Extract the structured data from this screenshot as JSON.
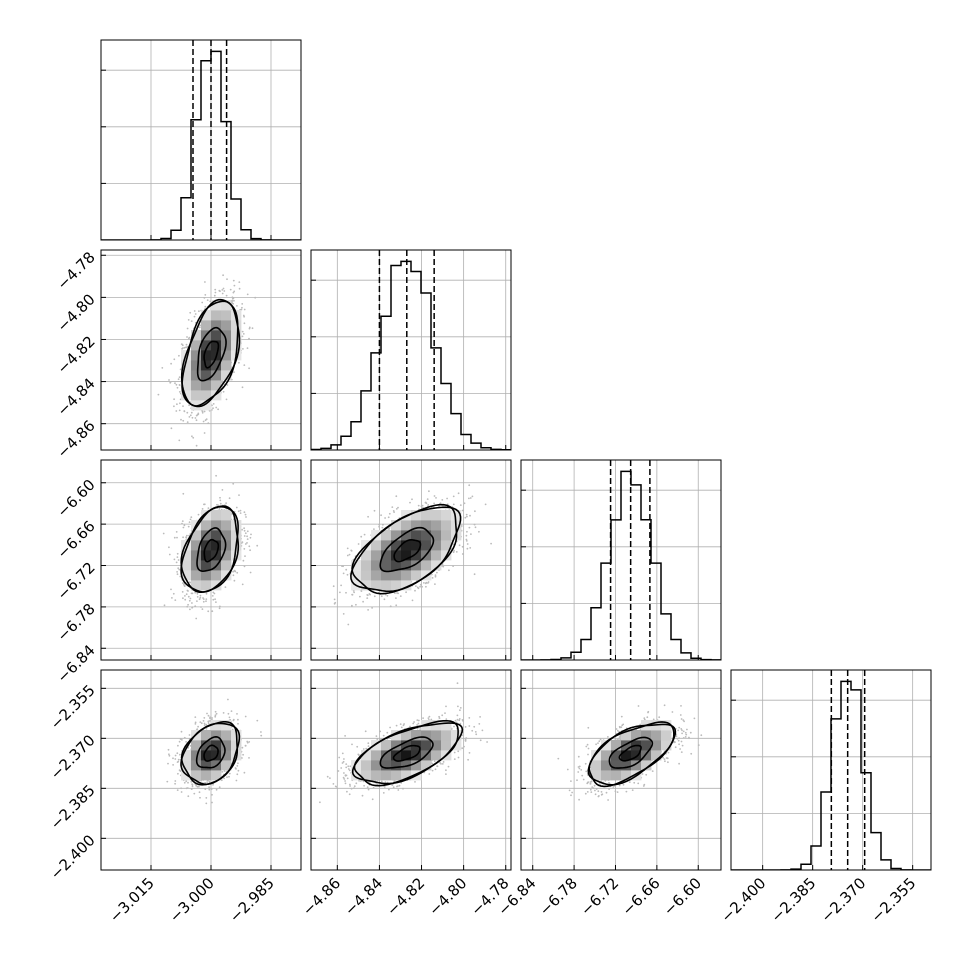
{
  "chart_data": {
    "type": "corner",
    "parameters": [
      {
        "ticks": [
          -3.015,
          -3.0,
          -2.985
        ],
        "tick_labels": [
          "−3.015",
          "−3.000",
          "−2.985"
        ],
        "range": [
          -3.0275,
          -2.9775
        ],
        "mean": -3.0,
        "sigma": 0.0035,
        "quantiles": [
          -3.0045,
          -3.0,
          -2.9961
        ]
      },
      {
        "ticks": [
          -4.86,
          -4.84,
          -4.82,
          -4.8,
          -4.78
        ],
        "tick_labels": [
          "−4.86",
          "−4.84",
          "−4.82",
          "−4.80",
          "−4.78"
        ],
        "range": [
          -4.8725,
          -4.7775
        ],
        "mean": -4.8268,
        "sigma": 0.0125,
        "quantiles": [
          -4.84,
          -4.827,
          -4.814
        ]
      },
      {
        "ticks": [
          -6.84,
          -6.78,
          -6.72,
          -6.66,
          -6.6
        ],
        "tick_labels": [
          "−6.84",
          "−6.78",
          "−6.72",
          "−6.66",
          "−6.60"
        ],
        "range": [
          -6.857,
          -6.567
        ],
        "mean": -6.698,
        "sigma": 0.031,
        "quantiles": [
          -6.7271,
          -6.698,
          -6.6701
        ]
      },
      {
        "ticks": [
          -2.4,
          -2.385,
          -2.37,
          -2.355
        ],
        "tick_labels": [
          "−2.400",
          "−2.385",
          "−2.370",
          "−2.355"
        ],
        "range": [
          -2.4095,
          -2.3495
        ],
        "mean": -2.3745,
        "sigma": 0.0046,
        "quantiles": [
          -2.3794,
          -2.3745,
          -2.3694
        ]
      }
    ],
    "correlations": {
      "1_0": 0.45,
      "2_0": 0.35,
      "3_0": 0.3,
      "2_1": 0.55,
      "3_1": 0.6,
      "3_2": 0.6
    },
    "histogram": {
      "bins": 20
    },
    "contour_levels_sigma": [
      0.5,
      1.0,
      1.5,
      2.0
    ],
    "colors": {
      "line": "#000000",
      "grid": "#b0b0b0",
      "scatter": "#bbbbbb",
      "frame": "#000000"
    }
  }
}
